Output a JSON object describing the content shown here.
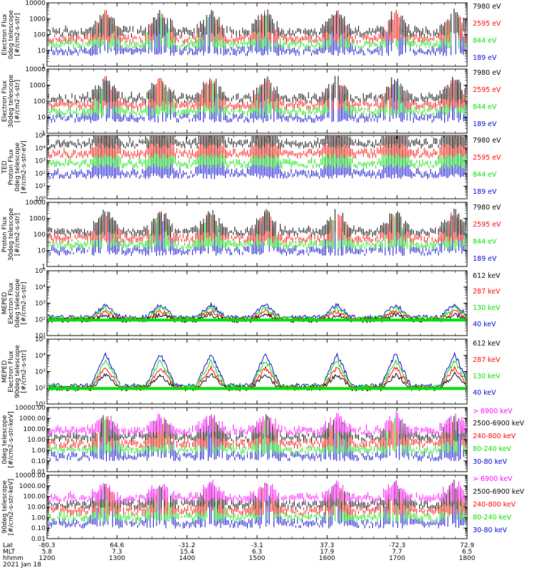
{
  "footer": {
    "row_labels": [
      "Lat",
      "MLT",
      "hhmm",
      "2021 Jan 18"
    ],
    "time_ticks": [
      {
        "lat": "-80.3",
        "mlt": "5.8",
        "hhmm": "1200"
      },
      {
        "lat": "64.6",
        "mlt": "7.3",
        "hhmm": "1300"
      },
      {
        "lat": "-31.2",
        "mlt": "15.4",
        "hhmm": "1400"
      },
      {
        "lat": "-3.1",
        "mlt": "6.3",
        "hhmm": "1500"
      },
      {
        "lat": "37.3",
        "mlt": "17.9",
        "hhmm": "1600"
      },
      {
        "lat": "-72.3",
        "mlt": "7.7",
        "hhmm": "1700"
      },
      {
        "lat": "72.9",
        "mlt": "6.5",
        "hhmm": "1800"
      }
    ]
  },
  "colors": {
    "black": "#000000",
    "red": "#ff0000",
    "green": "#00e000",
    "blue": "#0000cc",
    "magenta": "#ff00ff"
  },
  "chart_data": [
    {
      "type": "scatter",
      "ylabel": [
        "Electron Flux",
        "0deg telescope",
        "[#/cm2-s-str]"
      ],
      "y_scale": "log",
      "ylim": [
        1,
        10000
      ],
      "ytick_labels": [
        "1",
        "10",
        "100",
        "1000",
        "10000"
      ],
      "xlim": [
        "1200",
        "1800"
      ],
      "legend": [
        {
          "label": "7980 eV",
          "color": "black"
        },
        {
          "label": "2595 eV",
          "color": "red"
        },
        {
          "label": "844 eV",
          "color": "green"
        },
        {
          "label": "189 eV",
          "color": "blue"
        }
      ]
    },
    {
      "type": "scatter",
      "ylabel": [
        "Electron Flux",
        "30deg telescope",
        "[#/cm2-s-str]"
      ],
      "y_scale": "log",
      "ylim": [
        1,
        10000
      ],
      "ytick_labels": [
        "1",
        "10",
        "100",
        "1000",
        "10000"
      ],
      "xlim": [
        "1200",
        "1800"
      ],
      "legend": [
        {
          "label": "7980 eV",
          "color": "black"
        },
        {
          "label": "2595 eV",
          "color": "red"
        },
        {
          "label": "844 eV",
          "color": "green"
        },
        {
          "label": "189 eV",
          "color": "blue"
        }
      ]
    },
    {
      "type": "scatter",
      "ylabel": [
        "TED",
        "Proton Flux",
        "0deg telescope",
        "[#/cm2-s-str-eV]"
      ],
      "y_scale": "log",
      "ylim": [
        1,
        100000
      ],
      "ytick_labels": [
        "10⁰",
        "10¹",
        "10²",
        "10³",
        "10⁴",
        "10⁵"
      ],
      "xlim": [
        "1200",
        "1800"
      ],
      "legend": [
        {
          "label": "7980 eV",
          "color": "black"
        },
        {
          "label": "2595 eV",
          "color": "red"
        },
        {
          "label": "844 eV",
          "color": "green"
        },
        {
          "label": "189 eV",
          "color": "blue"
        }
      ]
    },
    {
      "type": "scatter",
      "ylabel": [
        "Proton Flux",
        "30deg telescope",
        "[#/cm2-s-str]"
      ],
      "y_scale": "log",
      "ylim": [
        1,
        10000
      ],
      "ytick_labels": [
        "1",
        "10",
        "100",
        "1000",
        "10000"
      ],
      "xlim": [
        "1200",
        "1800"
      ],
      "legend": [
        {
          "label": "7980 eV",
          "color": "black"
        },
        {
          "label": "2595 eV",
          "color": "red"
        },
        {
          "label": "844 eV",
          "color": "green"
        },
        {
          "label": "189 eV",
          "color": "blue"
        }
      ]
    },
    {
      "type": "line",
      "ylabel": [
        "MEPED",
        "Electron Flux",
        "0deg telescope",
        "[#/cm2-s-str]"
      ],
      "y_scale": "log",
      "ylim": [
        10,
        100000
      ],
      "ytick_labels": [
        "10¹",
        "10²",
        "10³",
        "10⁴",
        "10⁵"
      ],
      "xlim": [
        "1200",
        "1800"
      ],
      "legend": [
        {
          "label": "612 keV",
          "color": "black"
        },
        {
          "label": "287 keV",
          "color": "red"
        },
        {
          "label": "130 keV",
          "color": "green"
        },
        {
          "label": "40 keV",
          "color": "blue"
        }
      ]
    },
    {
      "type": "line",
      "ylabel": [
        "MEPED",
        "Electron Flux",
        "90deg telescope",
        "[#/cm2-s-str]"
      ],
      "y_scale": "log",
      "ylim": [
        10,
        100000
      ],
      "ytick_labels": [
        "10¹",
        "10²",
        "10³",
        "10⁴",
        "10⁵"
      ],
      "xlim": [
        "1200",
        "1800"
      ],
      "legend": [
        {
          "label": "612 keV",
          "color": "black"
        },
        {
          "label": "287 keV",
          "color": "red"
        },
        {
          "label": "130 keV",
          "color": "green"
        },
        {
          "label": "40 keV",
          "color": "blue"
        }
      ]
    },
    {
      "type": "scatter",
      "ylabel": [
        "0deg telescope",
        "[#/cm2-s-str-keV]"
      ],
      "y_scale": "log",
      "ylim": [
        0.01,
        10000
      ],
      "ytick_labels": [
        "0.01",
        "0.10",
        "1.00",
        "10.00",
        "100.00",
        "1000.00",
        "10000.00"
      ],
      "xlim": [
        "1200",
        "1800"
      ],
      "legend": [
        {
          "label": "> 6900 keV",
          "color": "magenta"
        },
        {
          "label": "2500-6900 keV",
          "color": "black"
        },
        {
          "label": "240-800 keV",
          "color": "red"
        },
        {
          "label": "80-240 keV",
          "color": "green"
        },
        {
          "label": "30-80 keV",
          "color": "blue"
        }
      ]
    },
    {
      "type": "scatter",
      "ylabel": [
        "90deg telescope",
        "[#/cm2-s-str-keV]"
      ],
      "y_scale": "log",
      "ylim": [
        0.01,
        10000
      ],
      "ytick_labels": [
        "0.01",
        "0.10",
        "1.00",
        "10.00",
        "100.00",
        "1000.00",
        "10000.00"
      ],
      "xlim": [
        "1200",
        "1800"
      ],
      "legend": [
        {
          "label": "> 6900 keV",
          "color": "magenta"
        },
        {
          "label": "2500-6900 keV",
          "color": "black"
        },
        {
          "label": "240-800 keV",
          "color": "red"
        },
        {
          "label": "80-240 keV",
          "color": "green"
        },
        {
          "label": "30-80 keV",
          "color": "blue"
        }
      ]
    }
  ]
}
